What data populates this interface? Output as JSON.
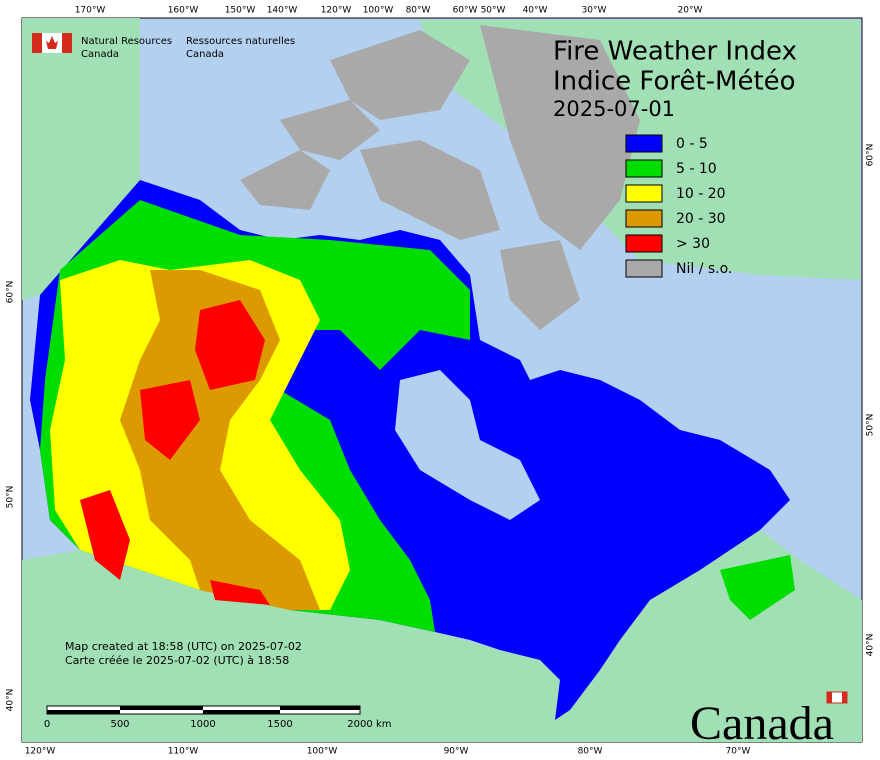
{
  "header": {
    "agency_en": [
      "Natural Resources",
      "Canada"
    ],
    "agency_fr": [
      "Ressources naturelles",
      "Canada"
    ]
  },
  "title": [
    "Fire Weather Index",
    "Indice Forêt-Météo"
  ],
  "date": "2025-07-01",
  "legend": [
    {
      "label": "0 - 5",
      "color": "#0000ff"
    },
    {
      "label": "5 - 10",
      "color": "#00dd00"
    },
    {
      "label": "10 - 20",
      "color": "#ffff00"
    },
    {
      "label": "20 - 30",
      "color": "#dd9900"
    },
    {
      "label": "> 30",
      "color": "#ff0000"
    },
    {
      "label": "Nil / s.o.",
      "color": "#a9a9a9"
    }
  ],
  "graticule": {
    "top": [
      "170°W",
      "160°W",
      "150°W",
      "140°W",
      "120°W",
      "100°W",
      "80°W",
      "60°W",
      "50°W",
      "40°W",
      "30°W",
      "20°W"
    ],
    "bottom": [
      "120°W",
      "110°W",
      "100°W",
      "90°W",
      "80°W",
      "70°W"
    ],
    "left": [
      "60°N",
      "50°N",
      "40°N"
    ],
    "right": [
      "60°N",
      "50°N",
      "40°N"
    ]
  },
  "notes": [
    "Map created at 18:58 (UTC) on 2025-07-02",
    "Carte créée le 2025-07-02 (UTC) à 18:58"
  ],
  "scale": {
    "ticks": [
      0,
      500,
      1000,
      1500,
      2000
    ],
    "unit": "km"
  },
  "wordmark": "Canada"
}
